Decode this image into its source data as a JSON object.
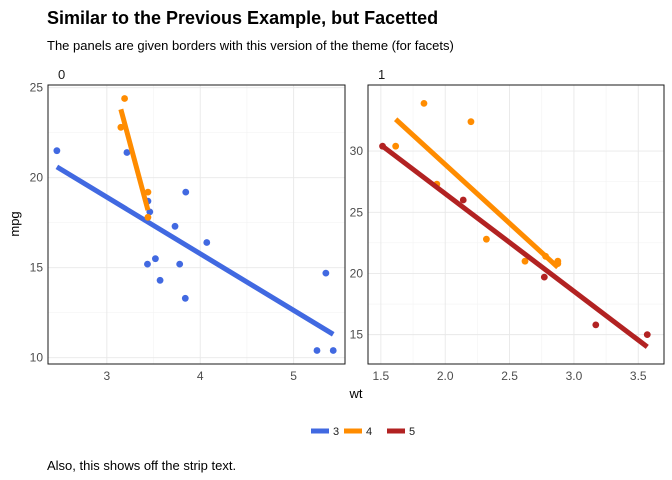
{
  "chart_data": {
    "type": "scatter",
    "title": "Similar to the Previous Example, but Facetted",
    "subtitle": "The panels are given borders with this version of the theme (for facets)",
    "caption": "Also, this shows off the strip text.",
    "xlabel": "wt",
    "ylabel": "mpg",
    "legend": {
      "position": "bottom",
      "entries": [
        "3",
        "4",
        "5"
      ]
    },
    "colors": {
      "3": "#4169e1",
      "4": "#ff8c00",
      "5": "#b22222"
    },
    "panels": [
      {
        "strip": "0",
        "xlim": [
          2.37,
          5.55
        ],
        "ylim": [
          9.65,
          25.15
        ],
        "xticks": [
          3,
          4,
          5
        ],
        "yticks": [
          10,
          15,
          20,
          25
        ],
        "series": [
          {
            "name": "3",
            "points": [
              [
                2.465,
                21.5
              ],
              [
                3.215,
                21.4
              ],
              [
                3.44,
                18.7
              ],
              [
                3.46,
                18.1
              ],
              [
                3.57,
                14.3
              ],
              [
                4.07,
                16.4
              ],
              [
                3.73,
                17.3
              ],
              [
                3.78,
                15.2
              ],
              [
                5.25,
                10.4
              ],
              [
                5.424,
                10.4
              ],
              [
                5.345,
                14.7
              ],
              [
                3.52,
                15.5
              ],
              [
                3.435,
                15.2
              ],
              [
                3.84,
                13.3
              ],
              [
                3.845,
                19.2
              ]
            ],
            "fit": [
              [
                2.465,
                20.6
              ],
              [
                5.424,
                11.3
              ]
            ]
          },
          {
            "name": "4",
            "points": [
              [
                3.19,
                24.4
              ],
              [
                3.15,
                22.8
              ],
              [
                3.44,
                19.2
              ],
              [
                3.44,
                17.8
              ]
            ],
            "fit": [
              [
                3.15,
                23.8
              ],
              [
                3.44,
                18.2
              ]
            ]
          }
        ]
      },
      {
        "strip": "1",
        "xlim": [
          1.4,
          3.7
        ],
        "ylim": [
          12.6,
          35.4
        ],
        "xticks": [
          1.5,
          2.0,
          2.5,
          3.0,
          3.5
        ],
        "yticks": [
          15,
          20,
          25,
          30
        ],
        "series": [
          {
            "name": "4",
            "points": [
              [
                2.62,
                21.0
              ],
              [
                2.875,
                21.0
              ],
              [
                2.32,
                22.8
              ],
              [
                2.2,
                32.4
              ],
              [
                1.615,
                30.4
              ],
              [
                1.835,
                33.9
              ],
              [
                1.935,
                27.3
              ],
              [
                2.78,
                21.4
              ],
              [
                2.875,
                20.8
              ]
            ],
            "fit": [
              [
                1.615,
                32.6
              ],
              [
                2.875,
                20.5
              ]
            ]
          },
          {
            "name": "5",
            "points": [
              [
                2.14,
                26.0
              ],
              [
                1.513,
                30.4
              ],
              [
                3.17,
                15.8
              ],
              [
                2.77,
                19.7
              ],
              [
                3.57,
                15.0
              ]
            ],
            "fit": [
              [
                1.513,
                30.4
              ],
              [
                3.57,
                14.0
              ]
            ]
          }
        ]
      }
    ]
  }
}
